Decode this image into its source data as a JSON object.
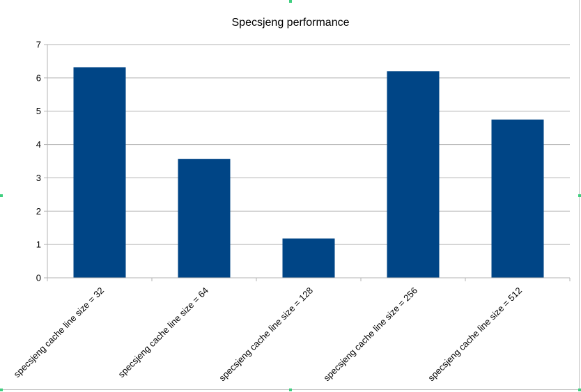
{
  "chart_data": {
    "type": "bar",
    "title": "Specsjeng performance",
    "categories": [
      "specsjeng cache line size = 32",
      "specsjeng cache line size = 64",
      "specsjeng cache line size = 128",
      "specsjeng cache line size = 256",
      "specsjeng cache line size = 512"
    ],
    "values": [
      6.32,
      3.57,
      1.18,
      6.2,
      4.75
    ],
    "ylim": [
      0,
      7
    ],
    "yticks": [
      "0",
      "1",
      "2",
      "3",
      "4",
      "5",
      "6",
      "7"
    ],
    "grid": true,
    "bar_color": "#004586",
    "grid_color": "#b3b3b3"
  }
}
